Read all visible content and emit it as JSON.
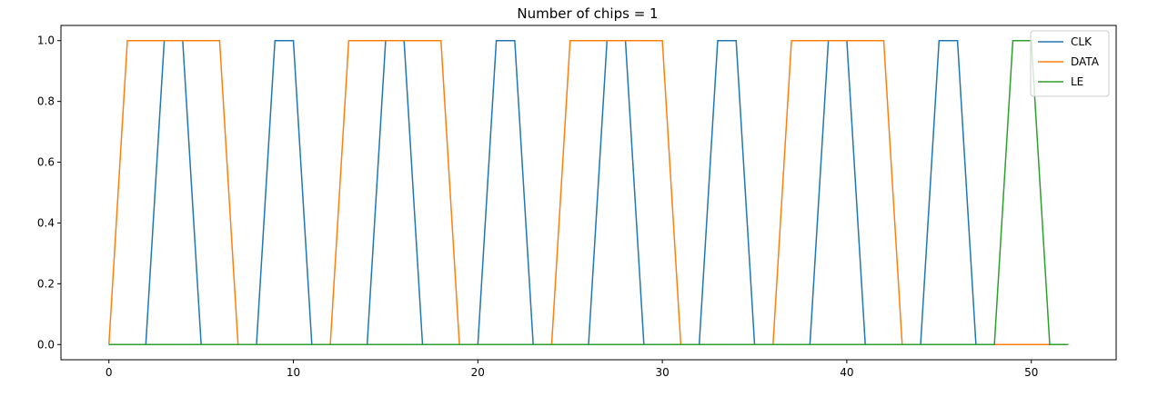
{
  "chart_data": {
    "type": "line",
    "title": "Number of chips = 1",
    "xlabel": "",
    "ylabel": "",
    "xlim": [
      -2.6,
      54.6
    ],
    "ylim": [
      -0.05,
      1.05
    ],
    "xticks": [
      0,
      10,
      20,
      30,
      40,
      50
    ],
    "xtick_labels": [
      "0",
      "10",
      "20",
      "30",
      "40",
      "50"
    ],
    "yticks": [
      0.0,
      0.2,
      0.4,
      0.6,
      0.8,
      1.0
    ],
    "ytick_labels": [
      "0.0",
      "0.2",
      "0.4",
      "0.6",
      "0.8",
      "1.0"
    ],
    "grid": false,
    "legend_position": "top-right",
    "series": [
      {
        "name": "CLK",
        "color": "#1f77b4",
        "x": [
          0,
          2,
          3,
          4,
          5,
          8,
          9,
          10,
          11,
          14,
          15,
          16,
          17,
          20,
          21,
          22,
          23,
          26,
          27,
          28,
          29,
          32,
          33,
          34,
          35,
          38,
          39,
          40,
          41,
          44,
          45,
          46,
          47,
          52
        ],
        "y": [
          0,
          0,
          1,
          1,
          0,
          0,
          1,
          1,
          0,
          0,
          1,
          1,
          0,
          0,
          1,
          1,
          0,
          0,
          1,
          1,
          0,
          0,
          1,
          1,
          0,
          0,
          1,
          1,
          0,
          0,
          1,
          1,
          0,
          0
        ]
      },
      {
        "name": "DATA",
        "color": "#ff7f0e",
        "x": [
          0,
          1,
          6,
          7,
          12,
          13,
          18,
          19,
          24,
          25,
          30,
          31,
          36,
          37,
          42,
          43,
          52
        ],
        "y": [
          0,
          1,
          1,
          0,
          0,
          1,
          1,
          0,
          0,
          1,
          1,
          0,
          0,
          1,
          1,
          0,
          0
        ]
      },
      {
        "name": "LE",
        "color": "#2ca02c",
        "x": [
          0,
          48,
          49,
          50,
          51,
          52
        ],
        "y": [
          0,
          0,
          1,
          1,
          0,
          0
        ]
      }
    ]
  }
}
